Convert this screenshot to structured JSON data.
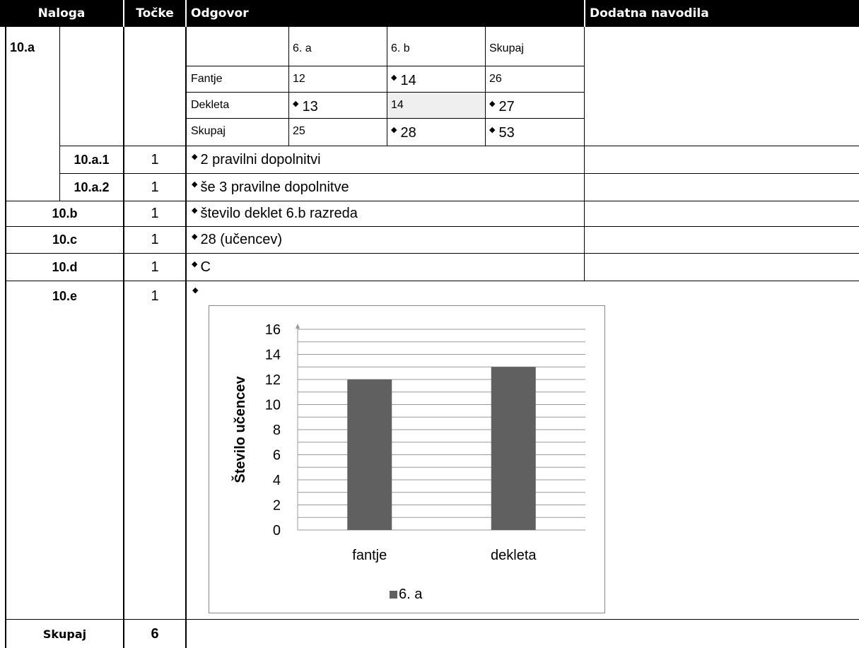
{
  "header": {
    "task": "Naloga",
    "points": "Točke",
    "answer": "Odgovor",
    "notes": "Dodatna navodila"
  },
  "q10a": {
    "label": "10.a",
    "table": {
      "col_headers": [
        "6. a",
        "6. b",
        "Skupaj"
      ],
      "rows": [
        {
          "label": "Fantje",
          "cells": [
            "12",
            "14",
            "26"
          ]
        },
        {
          "label": "Dekleta",
          "cells": [
            "13",
            "14",
            "27"
          ]
        },
        {
          "label": "Skupaj",
          "cells": [
            "25",
            "28",
            "53"
          ]
        }
      ]
    },
    "sub1": {
      "label": "10.a.1",
      "points": "1",
      "answer": "2 pravilni dopolnitvi"
    },
    "sub2": {
      "label": "10.a.2",
      "points": "1",
      "answer": "še 3 pravilne dopolnitve"
    }
  },
  "q10b": {
    "label": "10.b",
    "points": "1",
    "answer": "število deklet 6.b razreda"
  },
  "q10c": {
    "label": "10.c",
    "points": "1",
    "answer": "28 (učencev)"
  },
  "q10d": {
    "label": "10.d",
    "points": "1",
    "answer": "C"
  },
  "q10e": {
    "label": "10.e",
    "points": "1"
  },
  "total": {
    "label": "Skupaj",
    "points": "6"
  },
  "bullet": "◆",
  "chart_data": {
    "type": "bar",
    "categories": [
      "fantje",
      "dekleta"
    ],
    "series": [
      {
        "name": "6. a",
        "values": [
          12,
          13
        ]
      }
    ],
    "ylabel": "Število učencev",
    "xlabel": "",
    "ylim": [
      0,
      16
    ],
    "y_ticks": [
      0,
      2,
      4,
      6,
      8,
      10,
      12,
      14,
      16
    ],
    "grid": true,
    "legend": "bottom",
    "bar_color": "#606060",
    "grid_color": "#9a9a9a"
  }
}
